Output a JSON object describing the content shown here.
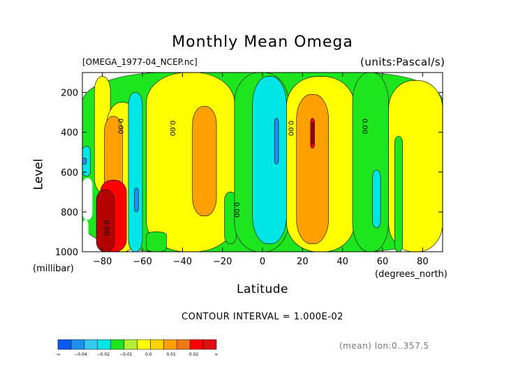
{
  "chart_data": {
    "type": "heatmap",
    "title": "Monthly Mean Omega",
    "file_label": "[OMEGA_1977-04_NCEP.nc]",
    "units_label": "(units:Pascal/s)",
    "xlabel": "Latitude",
    "x_units": "(degrees_north)",
    "ylabel": "Level",
    "y_units": "(millibar)",
    "xlim": [
      -90,
      90
    ],
    "ylim": [
      1000,
      100
    ],
    "x_ticks": [
      -80,
      -60,
      -40,
      -20,
      0,
      20,
      40,
      60,
      80
    ],
    "x_tick_labels": [
      "−80",
      "−60",
      "−40",
      "−20",
      "0",
      "20",
      "40",
      "60",
      "80"
    ],
    "y_ticks": [
      200,
      400,
      600,
      800,
      1000
    ],
    "y_tick_labels": [
      "200",
      "400",
      "600",
      "800",
      "1000"
    ],
    "contour_interval_text": "CONTOUR INTERVAL = 1.000E-02",
    "contour_labels": [
      "0.00",
      "0.00",
      "0.00",
      "0.00",
      "0.00",
      "0.00"
    ],
    "mean_label": "(mean) lon:0..357.5",
    "colorbar": {
      "colors": [
        "#0a5af0",
        "#1e91f0",
        "#32c8f0",
        "#00e6e6",
        "#1ee61e",
        "#b4f032",
        "#ffff00",
        "#ffd200",
        "#ffa000",
        "#f07814",
        "#ff0000",
        "#e01010"
      ],
      "labels": [
        "-∞",
        "−0.04",
        "−0.02",
        "−0.01",
        "0.0",
        "0.01",
        "0.02",
        "∞"
      ]
    },
    "color_levels": {
      "red": "#ff0000",
      "dark_red": "#b40000",
      "orange": "#ffa000",
      "yellow": "#ffff00",
      "green": "#1ee61e",
      "cyan": "#00e6e6",
      "light_blue": "#32c8f0",
      "blue": "#1e91f0",
      "dark_blue": "#0a5af0",
      "missing": "#ffffff"
    },
    "regions": [
      {
        "level": "green",
        "lat": [
          -90,
          90
        ],
        "p": [
          100,
          1000
        ]
      },
      {
        "level": "yellow",
        "lat": [
          -84,
          -76
        ],
        "p": [
          120,
          700
        ]
      },
      {
        "level": "yellow",
        "lat": [
          -78,
          -62
        ],
        "p": [
          250,
          1000
        ]
      },
      {
        "level": "orange",
        "lat": [
          -79,
          -70
        ],
        "p": [
          320,
          800
        ]
      },
      {
        "level": "red",
        "lat": [
          -81,
          -68
        ],
        "p": [
          640,
          1000
        ]
      },
      {
        "level": "dark_red",
        "lat": [
          -83,
          -74
        ],
        "p": [
          690,
          1000
        ]
      },
      {
        "level": "missing",
        "lat": [
          -90,
          -85
        ],
        "p": [
          630,
          840
        ]
      },
      {
        "level": "missing",
        "lat": [
          -90,
          -87
        ],
        "p": [
          840,
          1000
        ]
      },
      {
        "level": "cyan",
        "lat": [
          -90,
          -86
        ],
        "p": [
          470,
          620
        ]
      },
      {
        "level": "blue",
        "lat": [
          -90,
          -88
        ],
        "p": [
          530,
          560
        ]
      },
      {
        "level": "cyan",
        "lat": [
          -67,
          -60
        ],
        "p": [
          200,
          1000
        ]
      },
      {
        "level": "blue",
        "lat": [
          -64,
          -62
        ],
        "p": [
          680,
          800
        ]
      },
      {
        "level": "yellow",
        "lat": [
          -58,
          -14
        ],
        "p": [
          100,
          1000
        ]
      },
      {
        "level": "green",
        "lat": [
          -58,
          -48
        ],
        "p": [
          900,
          1000
        ]
      },
      {
        "level": "orange",
        "lat": [
          -35,
          -23
        ],
        "p": [
          270,
          820
        ]
      },
      {
        "level": "green",
        "lat": [
          -19,
          -13
        ],
        "p": [
          700,
          960
        ]
      },
      {
        "level": "green",
        "lat": [
          -14,
          13
        ],
        "p": [
          100,
          1000
        ]
      },
      {
        "level": "cyan",
        "lat": [
          -5,
          12
        ],
        "p": [
          120,
          960
        ]
      },
      {
        "level": "blue",
        "lat": [
          6,
          8
        ],
        "p": [
          330,
          560
        ]
      },
      {
        "level": "yellow",
        "lat": [
          12,
          46
        ],
        "p": [
          120,
          1000
        ]
      },
      {
        "level": "orange",
        "lat": [
          17,
          33
        ],
        "p": [
          210,
          960
        ]
      },
      {
        "level": "red",
        "lat": [
          24,
          26
        ],
        "p": [
          330,
          480
        ]
      },
      {
        "level": "dark_red",
        "lat": [
          24.5,
          25.5
        ],
        "p": [
          350,
          460
        ]
      },
      {
        "level": "green",
        "lat": [
          45,
          63
        ],
        "p": [
          100,
          1000
        ]
      },
      {
        "level": "cyan",
        "lat": [
          55,
          59
        ],
        "p": [
          590,
          880
        ]
      },
      {
        "level": "yellow",
        "lat": [
          63,
          90
        ],
        "p": [
          140,
          1000
        ]
      },
      {
        "level": "green",
        "lat": [
          66,
          70
        ],
        "p": [
          420,
          1000
        ]
      }
    ]
  }
}
